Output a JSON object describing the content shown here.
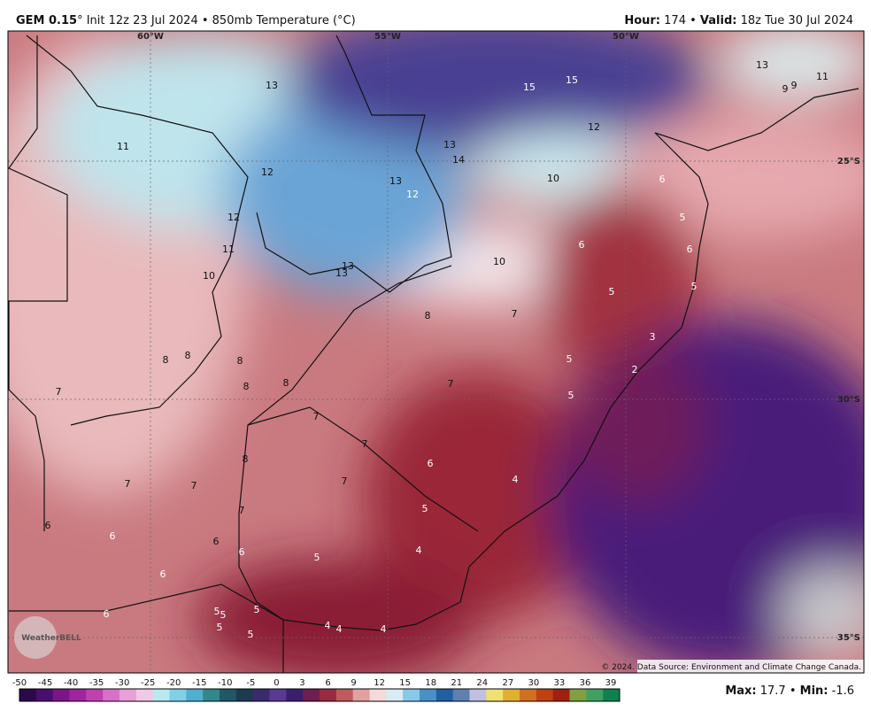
{
  "header": {
    "model": "GEM 0.15",
    "description": "° Init 12z 23 Jul 2024 • 850mb Temperature (°C)",
    "hour_label": "Hour:",
    "hour": " 174 • ",
    "valid_label": "Valid:",
    "valid": " 18z Tue 30 Jul 2024"
  },
  "graticule": {
    "longitudes": [
      "60°W",
      "55°W",
      "50°W"
    ],
    "latitudes": [
      "25°S",
      "30°S",
      "35°S"
    ]
  },
  "map_labels": [
    13,
    15,
    15,
    13,
    9,
    9,
    11,
    12,
    11,
    13,
    14,
    12,
    13,
    12,
    10,
    6,
    12,
    5,
    6,
    6,
    11,
    13,
    13,
    10,
    10,
    5,
    5,
    8,
    7,
    3,
    8,
    8,
    8,
    5,
    2,
    8,
    8,
    7,
    7,
    5,
    7,
    7,
    6,
    8,
    7,
    7,
    7,
    4,
    7,
    5,
    6,
    6,
    6,
    6,
    5,
    4,
    6,
    6,
    5,
    5,
    5,
    5,
    5,
    4,
    4,
    4
  ],
  "copyright": "© 2024. Data Source: Environment and Climate Change Canada.",
  "logo": "WeatherBELL",
  "colorbar": {
    "ticks": [
      -50,
      -45,
      -40,
      -35,
      -30,
      -25,
      -20,
      -15,
      -10,
      -5,
      0,
      3,
      6,
      9,
      12,
      15,
      18,
      21,
      24,
      27,
      30,
      33,
      36,
      39
    ]
  },
  "footer": {
    "max_label": "Max:",
    "max": " 17.7 • ",
    "min_label": "Min:",
    "min": " -1.6"
  }
}
